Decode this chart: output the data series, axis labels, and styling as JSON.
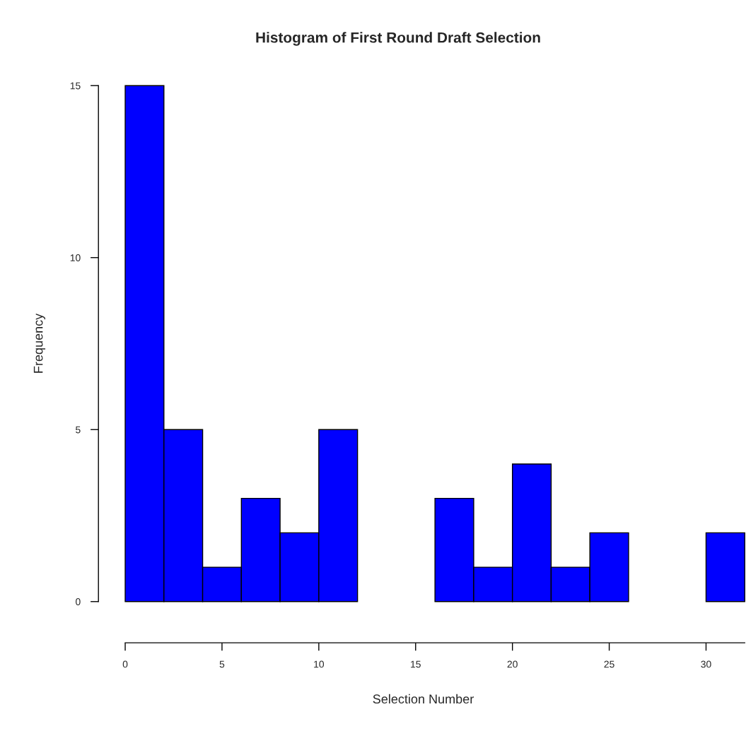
{
  "chart_data": {
    "type": "histogram",
    "title": "Histogram of First Round Draft Selection",
    "xlabel": "Selection Number",
    "ylabel": "Frequency",
    "bins": [
      0,
      2,
      4,
      6,
      8,
      10,
      12,
      14,
      16,
      18,
      20,
      22,
      24,
      26,
      28,
      30,
      32
    ],
    "values": [
      15,
      5,
      1,
      3,
      2,
      5,
      0,
      0,
      3,
      1,
      4,
      1,
      2,
      0,
      0,
      2
    ],
    "color": "#0000ff",
    "xlim": [
      0,
      32
    ],
    "xticks": [
      0,
      5,
      10,
      15,
      20,
      25,
      30
    ],
    "ylim": [
      0,
      15
    ],
    "yticks": [
      0,
      5,
      10,
      15
    ],
    "grid": false,
    "legend": false
  }
}
